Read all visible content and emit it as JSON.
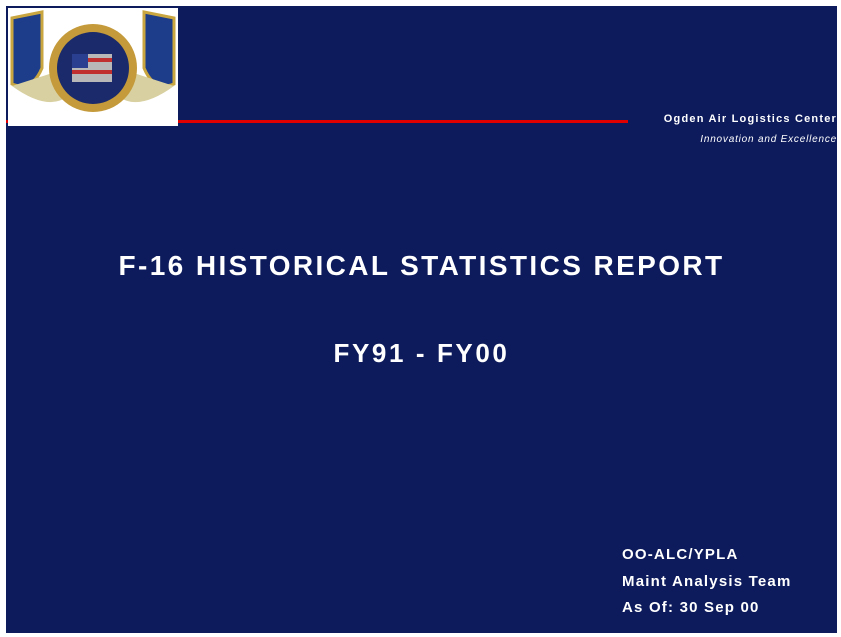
{
  "header": {
    "organization": "Ogden Air Logistics Center",
    "motto": "Innovation and Excellence"
  },
  "title": "F-16 HISTORICAL STATISTICS REPORT",
  "subtitle": "FY91 - FY00",
  "footer": {
    "lines": [
      "OO-ALC/YPLA",
      "Maint Analysis Team",
      "As Of: 30 Sep 00"
    ]
  }
}
